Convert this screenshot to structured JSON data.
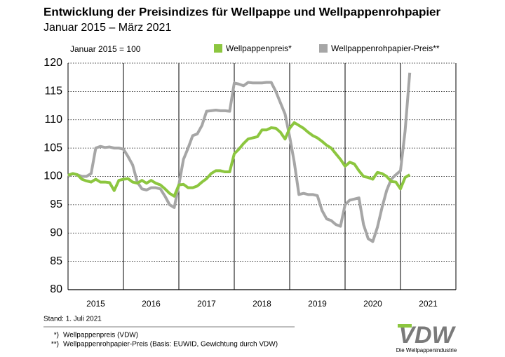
{
  "chart_data": {
    "type": "line",
    "title": "Entwicklung der Preisindizes für Wellpappe und Wellpappenrohpapier",
    "subtitle": "Januar 2015 – März 2021",
    "annotation": "Januar 2015 = 100",
    "x": [
      2015,
      2015.083,
      2015.167,
      2015.25,
      2015.333,
      2015.417,
      2015.5,
      2015.583,
      2015.667,
      2015.75,
      2015.833,
      2015.917,
      2016,
      2016.083,
      2016.167,
      2016.25,
      2016.333,
      2016.417,
      2016.5,
      2016.583,
      2016.667,
      2016.75,
      2016.833,
      2016.917,
      2017,
      2017.083,
      2017.167,
      2017.25,
      2017.333,
      2017.417,
      2017.5,
      2017.583,
      2017.667,
      2017.75,
      2017.833,
      2017.917,
      2018,
      2018.083,
      2018.167,
      2018.25,
      2018.333,
      2018.417,
      2018.5,
      2018.583,
      2018.667,
      2018.75,
      2018.833,
      2018.917,
      2019,
      2019.083,
      2019.167,
      2019.25,
      2019.333,
      2019.417,
      2019.5,
      2019.583,
      2019.667,
      2019.75,
      2019.833,
      2019.917,
      2020,
      2020.083,
      2020.167,
      2020.25,
      2020.333,
      2020.417,
      2020.5,
      2020.583,
      2020.667,
      2020.75,
      2020.833,
      2020.917,
      2021,
      2021.083,
      2021.167
    ],
    "series": [
      {
        "name": "Wellpappenpreis*",
        "color": "#8cc63f",
        "width": 4,
        "values": [
          100.2,
          100.5,
          100.3,
          99.5,
          99.2,
          99.0,
          99.5,
          99.0,
          99.0,
          98.9,
          97.5,
          99.3,
          99.5,
          99.6,
          99.0,
          98.8,
          99.3,
          98.8,
          99.3,
          98.8,
          98.5,
          97.8,
          97.0,
          96.5,
          98.5,
          98.6,
          98.0,
          98.0,
          98.3,
          99.0,
          99.6,
          100.5,
          101.0,
          101.0,
          100.8,
          100.8,
          104.0,
          104.8,
          105.8,
          106.6,
          106.8,
          107.0,
          108.2,
          108.2,
          108.6,
          108.5,
          107.8,
          106.6,
          108.5,
          109.5,
          109.0,
          108.5,
          107.8,
          107.2,
          106.8,
          106.2,
          105.5,
          105.0,
          104.0,
          103.0,
          101.8,
          102.5,
          102.2,
          101.0,
          100.0,
          99.8,
          99.5,
          100.7,
          100.5,
          100.0,
          99.1,
          99.0,
          97.8,
          99.8,
          100.3
        ]
      },
      {
        "name": "Wellpappenrohpapier-Preis**",
        "color": "#a6a6a6",
        "width": 4,
        "values": [
          100.0,
          100.5,
          100.3,
          100.0,
          100.0,
          100.5,
          105.0,
          105.3,
          105.1,
          105.2,
          105.0,
          105.0,
          104.8,
          103.5,
          102.0,
          99.0,
          97.8,
          97.6,
          98.0,
          98.0,
          97.8,
          96.5,
          95.0,
          94.5,
          98.5,
          103.0,
          105.0,
          107.2,
          107.5,
          109.0,
          111.5,
          111.6,
          111.7,
          111.6,
          111.6,
          111.5,
          116.5,
          116.3,
          116.0,
          116.6,
          116.5,
          116.5,
          116.5,
          116.6,
          116.6,
          115.0,
          113.0,
          111.0,
          107.0,
          102.5,
          96.8,
          97.0,
          96.8,
          96.8,
          96.6,
          94.0,
          92.5,
          92.2,
          91.5,
          91.2,
          95.0,
          95.8,
          96.0,
          96.2,
          91.5,
          89.0,
          88.5,
          91.0,
          94.5,
          97.5,
          99.5,
          100.3,
          101.0,
          108.0,
          118.3
        ]
      }
    ],
    "xlim": [
      2015,
      2022
    ],
    "xticks": [
      2016,
      2017,
      2018,
      2019,
      2020,
      2021
    ],
    "x_labels": [
      {
        "value": 2015.5,
        "label": "2015"
      },
      {
        "value": 2016.5,
        "label": "2016"
      },
      {
        "value": 2017.5,
        "label": "2017"
      },
      {
        "value": 2018.5,
        "label": "2018"
      },
      {
        "value": 2019.5,
        "label": "2019"
      },
      {
        "value": 2020.5,
        "label": "2020"
      },
      {
        "value": 2021.5,
        "label": "2021"
      }
    ],
    "ylim": [
      80,
      120
    ],
    "yticks": [
      80,
      85,
      90,
      95,
      100,
      105,
      110,
      115,
      120
    ],
    "grid": true,
    "legend": "top",
    "footer": "Stand: 1. Juli 2021",
    "footnotes": [
      {
        "mark": "*)",
        "text": "Wellpappenpreis (VDW)"
      },
      {
        "mark": "**)",
        "text": "Wellpappenrohpapier-Preis (Basis: EUWID, Gewichtung durch VDW)"
      }
    ]
  },
  "logo": {
    "name": "VDW",
    "tagline": "Die Wellpappenindustrie"
  }
}
